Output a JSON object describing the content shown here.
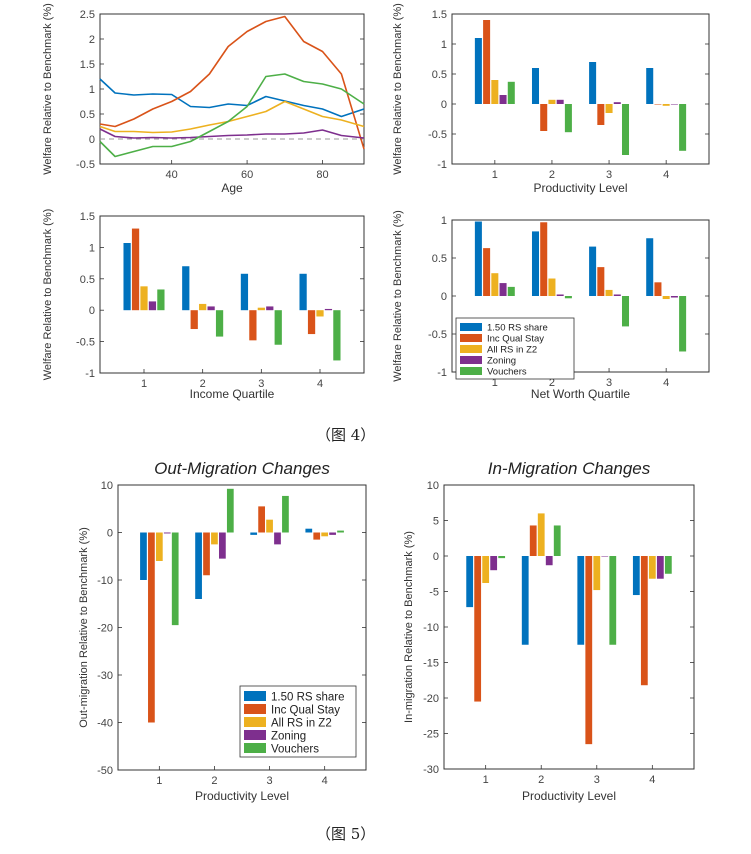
{
  "figure4": {
    "caption": "（图 4）"
  },
  "figure5": {
    "caption": "（图 5）"
  },
  "colors": {
    "s1": "#0072BD",
    "s2": "#D95319",
    "s3": "#EDB120",
    "s4": "#7E2F8E",
    "s5": "#4DAF47"
  },
  "chart_data": [
    {
      "id": "age",
      "type": "line",
      "title": "",
      "xlabel": "Age",
      "ylabel": "Welfare Relative to Benchmark (%)",
      "xlim": [
        21,
        91
      ],
      "ylim": [
        -0.5,
        2.5
      ],
      "xticks": [
        40,
        60,
        80
      ],
      "yticks": [
        -0.5,
        0,
        0.5,
        1,
        1.5,
        2,
        2.5
      ],
      "dashed_zero": true,
      "x": [
        21,
        25,
        30,
        35,
        40,
        45,
        50,
        55,
        60,
        65,
        70,
        75,
        80,
        85,
        91
      ],
      "series": [
        {
          "name": "1.50 RS share",
          "values": [
            1.2,
            0.92,
            0.88,
            0.9,
            0.89,
            0.65,
            0.63,
            0.7,
            0.67,
            0.85,
            0.76,
            0.67,
            0.6,
            0.45,
            0.6
          ]
        },
        {
          "name": "Inc Qual Stay",
          "values": [
            0.3,
            0.25,
            0.4,
            0.6,
            0.75,
            0.95,
            1.3,
            1.85,
            2.15,
            2.35,
            2.45,
            1.95,
            1.75,
            1.3,
            -0.2
          ]
        },
        {
          "name": "All RS in Z2",
          "values": [
            0.25,
            0.15,
            0.15,
            0.13,
            0.14,
            0.2,
            0.28,
            0.35,
            0.45,
            0.55,
            0.75,
            0.6,
            0.45,
            0.38,
            0.25
          ]
        },
        {
          "name": "Zoning",
          "values": [
            0.2,
            0.05,
            0.02,
            0.03,
            0.02,
            0.03,
            0.05,
            0.07,
            0.08,
            0.1,
            0.1,
            0.12,
            0.18,
            0.07,
            0.02
          ]
        },
        {
          "name": "Vouchers",
          "values": [
            -0.05,
            -0.35,
            -0.25,
            -0.15,
            -0.15,
            -0.05,
            0.15,
            0.35,
            0.65,
            1.25,
            1.3,
            1.15,
            1.1,
            1.0,
            0.7
          ]
        }
      ]
    },
    {
      "id": "prod",
      "type": "bar",
      "title": "",
      "xlabel": "Productivity Level",
      "ylabel": "Welfare Relative to Benchmark (%)",
      "categories": [
        "1",
        "2",
        "3",
        "4"
      ],
      "ylim": [
        -1,
        1.5
      ],
      "yticks": [
        -1,
        -0.5,
        0,
        0.5,
        1,
        1.5
      ],
      "series": [
        {
          "name": "1.50 RS share",
          "values": [
            1.1,
            0.6,
            0.7,
            0.6
          ]
        },
        {
          "name": "Inc Qual Stay",
          "values": [
            1.4,
            -0.45,
            -0.35,
            0.0
          ]
        },
        {
          "name": "All RS in Z2",
          "values": [
            0.4,
            0.07,
            -0.15,
            -0.03
          ]
        },
        {
          "name": "Zoning",
          "values": [
            0.15,
            0.07,
            0.03,
            0.0
          ]
        },
        {
          "name": "Vouchers",
          "values": [
            0.37,
            -0.47,
            -0.85,
            -0.78
          ]
        }
      ]
    },
    {
      "id": "income",
      "type": "bar",
      "title": "",
      "xlabel": "Income Quartile",
      "ylabel": "Welfare Relative to Benchmark (%)",
      "categories": [
        "1",
        "2",
        "3",
        "4"
      ],
      "ylim": [
        -1,
        1.5
      ],
      "yticks": [
        -1,
        -0.5,
        0,
        0.5,
        1,
        1.5
      ],
      "series": [
        {
          "name": "1.50 RS share",
          "values": [
            1.07,
            0.7,
            0.58,
            0.58
          ]
        },
        {
          "name": "Inc Qual Stay",
          "values": [
            1.3,
            -0.3,
            -0.48,
            -0.38
          ]
        },
        {
          "name": "All RS in Z2",
          "values": [
            0.38,
            0.1,
            0.04,
            -0.1
          ]
        },
        {
          "name": "Zoning",
          "values": [
            0.14,
            0.06,
            0.06,
            0.02
          ]
        },
        {
          "name": "Vouchers",
          "values": [
            0.33,
            -0.42,
            -0.55,
            -0.8
          ]
        }
      ]
    },
    {
      "id": "networth",
      "type": "bar",
      "title": "",
      "xlabel": "Net Worth Quartile",
      "ylabel": "Welfare Relative to Benchmark (%)",
      "categories": [
        "1",
        "2",
        "3",
        "4"
      ],
      "ylim": [
        -1,
        1
      ],
      "yticks": [
        -1,
        -0.5,
        0,
        0.5,
        1
      ],
      "legend": "bottom-left",
      "series": [
        {
          "name": "1.50 RS share",
          "values": [
            0.98,
            0.85,
            0.65,
            0.76
          ]
        },
        {
          "name": "Inc Qual Stay",
          "values": [
            0.63,
            0.97,
            0.38,
            0.18
          ]
        },
        {
          "name": "All RS in Z2",
          "values": [
            0.3,
            0.23,
            0.08,
            -0.04
          ]
        },
        {
          "name": "Zoning",
          "values": [
            0.17,
            0.02,
            0.02,
            -0.02
          ]
        },
        {
          "name": "Vouchers",
          "values": [
            0.12,
            -0.03,
            -0.4,
            -0.73
          ]
        }
      ]
    },
    {
      "id": "outmig",
      "type": "bar",
      "title": "Out-Migration Changes",
      "xlabel": "Productivity Level",
      "ylabel": "Out-migration Relative to Benchmark (%)",
      "categories": [
        "1",
        "2",
        "3",
        "4"
      ],
      "ylim": [
        -50,
        10
      ],
      "yticks": [
        -50,
        -40,
        -30,
        -20,
        -10,
        0,
        10
      ],
      "legend": "bottom-right",
      "series": [
        {
          "name": "1.50 RS share",
          "values": [
            -10,
            -14,
            -0.5,
            0.8
          ]
        },
        {
          "name": "Inc Qual Stay",
          "values": [
            -40,
            -9,
            5.5,
            -1.5
          ]
        },
        {
          "name": "All RS in Z2",
          "values": [
            -6,
            -2.5,
            2.7,
            -0.8
          ]
        },
        {
          "name": "Zoning",
          "values": [
            -0.2,
            -5.5,
            -2.5,
            -0.5
          ]
        },
        {
          "name": "Vouchers",
          "values": [
            -19.5,
            9.2,
            7.7,
            0.4
          ]
        }
      ]
    },
    {
      "id": "inmig",
      "type": "bar",
      "title": "In-Migration Changes",
      "xlabel": "Productivity Level",
      "ylabel": "In-migration Relative to Benchmark (%)",
      "categories": [
        "1",
        "2",
        "3",
        "4"
      ],
      "ylim": [
        -30,
        10
      ],
      "yticks": [
        -30,
        -25,
        -20,
        -15,
        -10,
        -5,
        0,
        5,
        10
      ],
      "series": [
        {
          "name": "1.50 RS share",
          "values": [
            -7.2,
            -12.5,
            -12.5,
            -5.5
          ]
        },
        {
          "name": "Inc Qual Stay",
          "values": [
            -20.5,
            4.3,
            -26.5,
            -18.2
          ]
        },
        {
          "name": "All RS in Z2",
          "values": [
            -3.8,
            6.0,
            -4.8,
            -3.2
          ]
        },
        {
          "name": "Zoning",
          "values": [
            -2.0,
            -1.3,
            0.0,
            -3.2
          ]
        },
        {
          "name": "Vouchers",
          "values": [
            -0.3,
            4.3,
            -12.5,
            -2.5
          ]
        }
      ]
    }
  ]
}
